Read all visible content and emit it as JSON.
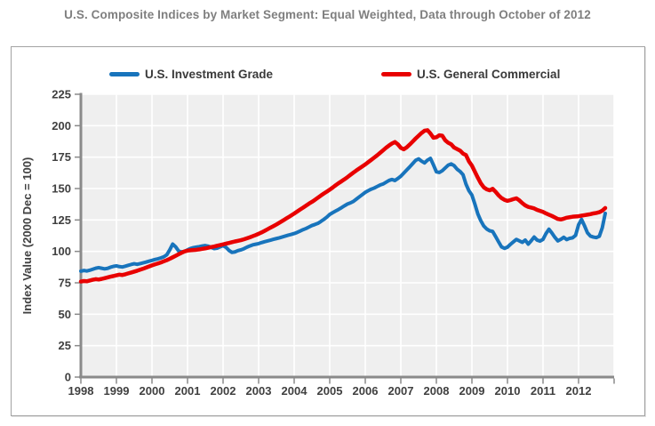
{
  "page_title": "U.S. Composite Indices by Market Segment: Equal Weighted, Data through October of 2012",
  "colors": {
    "title_text": "#7f7f7f",
    "axis_text": "#404040",
    "axis_line": "#8a8a8a",
    "plot_bg": "#efefef",
    "gridline": "#ffffff",
    "chart_border": "#a3a3a3",
    "investment_grade": "#1874bc",
    "general_commercial": "#e80000"
  },
  "chart_data": {
    "type": "line",
    "title": "U.S. Composite Indices by Market Segment: Equal Weighted, Data through October of 2012",
    "xlabel": "",
    "ylabel": "Index Value (2000 Dec = 100)",
    "ylim": [
      0,
      225
    ],
    "yticks": [
      0,
      25,
      50,
      75,
      100,
      125,
      150,
      175,
      200,
      225
    ],
    "xtick_labels": [
      "1998",
      "1999",
      "2000",
      "2001",
      "2002",
      "2003",
      "2004",
      "2005",
      "2006",
      "2007",
      "2008",
      "2009",
      "2010",
      "2011",
      "2012"
    ],
    "x_start": "1998-01",
    "x_end": "2012-10",
    "x_frequency": "monthly",
    "grid": true,
    "legend_position": "top",
    "series": [
      {
        "name": "U.S. Investment Grade",
        "color": "#1874bc",
        "values": [
          84.3,
          84.8,
          84.4,
          85.0,
          85.8,
          86.6,
          87.1,
          86.6,
          86.1,
          86.5,
          87.4,
          88.1,
          88.5,
          87.9,
          87.6,
          88.2,
          88.9,
          89.6,
          90.2,
          89.7,
          90.3,
          90.9,
          91.5,
          92.2,
          92.8,
          93.5,
          94.1,
          94.8,
          95.7,
          97.3,
          101.2,
          105.8,
          103.6,
          100.3,
          99.6,
          100.0,
          101.2,
          102.3,
          103.0,
          103.4,
          103.8,
          104.3,
          104.6,
          104.1,
          103.2,
          102.2,
          102.6,
          103.6,
          104.6,
          103.2,
          100.8,
          99.2,
          99.6,
          100.6,
          101.2,
          102.1,
          103.3,
          104.3,
          105.2,
          105.7,
          106.2,
          107.0,
          107.7,
          108.3,
          108.9,
          109.6,
          110.2,
          110.8,
          111.5,
          112.2,
          112.9,
          113.5,
          114.2,
          115.1,
          116.2,
          117.3,
          118.2,
          119.4,
          120.6,
          121.4,
          122.3,
          123.8,
          125.4,
          127.2,
          129.4,
          130.8,
          132.1,
          133.4,
          134.8,
          136.3,
          137.7,
          138.6,
          139.8,
          141.6,
          143.4,
          145.2,
          147.0,
          148.3,
          149.5,
          150.4,
          151.6,
          152.8,
          153.6,
          155.0,
          156.4,
          157.2,
          156.4,
          158.0,
          159.8,
          162.3,
          164.8,
          167.2,
          169.8,
          172.4,
          173.6,
          171.8,
          170.4,
          172.6,
          174.0,
          168.9,
          163.3,
          162.8,
          164.2,
          166.4,
          168.6,
          169.6,
          168.2,
          165.4,
          163.6,
          161.0,
          153.5,
          148.2,
          144.8,
          137.6,
          129.8,
          124.4,
          120.2,
          117.8,
          116.4,
          115.9,
          111.8,
          107.6,
          103.6,
          102.4,
          103.4,
          105.6,
          107.6,
          109.5,
          108.4,
          107.2,
          109.0,
          105.8,
          108.4,
          111.4,
          109.0,
          108.2,
          109.6,
          114.2,
          117.6,
          114.6,
          111.2,
          108.4,
          109.6,
          111.2,
          109.4,
          110.4,
          110.8,
          112.8,
          121.2,
          125.4,
          120.4,
          114.8,
          112.2,
          111.4,
          111.0,
          112.0,
          118.8,
          130.2
        ]
      },
      {
        "name": "U.S. General Commercial",
        "color": "#e80000",
        "values": [
          76.0,
          76.4,
          76.2,
          76.8,
          77.4,
          77.9,
          77.6,
          78.1,
          78.7,
          79.3,
          79.9,
          80.4,
          81.0,
          81.5,
          81.2,
          81.8,
          82.5,
          83.2,
          83.9,
          84.6,
          85.4,
          86.2,
          87.1,
          88.0,
          88.9,
          89.7,
          90.4,
          91.2,
          92.1,
          93.0,
          94.1,
          95.3,
          96.5,
          97.7,
          98.9,
          100.0,
          100.6,
          100.9,
          101.1,
          101.3,
          101.6,
          102.0,
          102.4,
          102.9,
          103.4,
          103.9,
          104.5,
          105.0,
          105.6,
          106.2,
          106.7,
          107.3,
          107.9,
          108.4,
          108.9,
          109.6,
          110.4,
          111.2,
          112.1,
          113.0,
          114.0,
          115.1,
          116.3,
          117.6,
          118.9,
          120.1,
          121.4,
          122.8,
          124.2,
          125.7,
          127.1,
          128.6,
          130.1,
          131.7,
          133.3,
          134.8,
          136.4,
          138.0,
          139.4,
          141.0,
          142.7,
          144.4,
          146.0,
          147.5,
          149.1,
          150.8,
          152.6,
          154.3,
          155.8,
          157.4,
          159.1,
          160.9,
          162.7,
          164.4,
          166.0,
          167.6,
          169.2,
          171.0,
          172.8,
          174.6,
          176.4,
          178.4,
          180.4,
          182.4,
          184.2,
          185.8,
          187.0,
          185.2,
          182.4,
          181.2,
          182.8,
          185.0,
          187.4,
          189.8,
          192.0,
          194.2,
          196.0,
          196.4,
          193.8,
          190.4,
          190.8,
          192.4,
          192.0,
          188.4,
          186.4,
          185.2,
          182.6,
          181.4,
          180.2,
          177.8,
          176.6,
          171.6,
          168.2,
          163.4,
          158.6,
          154.2,
          151.0,
          149.4,
          148.6,
          149.8,
          147.4,
          144.6,
          142.4,
          141.0,
          140.2,
          140.8,
          141.6,
          142.2,
          140.6,
          138.4,
          136.6,
          135.4,
          134.8,
          134.2,
          133.0,
          132.2,
          131.4,
          130.2,
          129.2,
          128.2,
          127.0,
          125.8,
          125.4,
          126.0,
          126.8,
          127.2,
          127.6,
          127.8,
          128.0,
          128.4,
          128.8,
          129.2,
          129.6,
          130.2,
          130.6,
          131.2,
          132.4,
          134.5
        ]
      }
    ]
  }
}
